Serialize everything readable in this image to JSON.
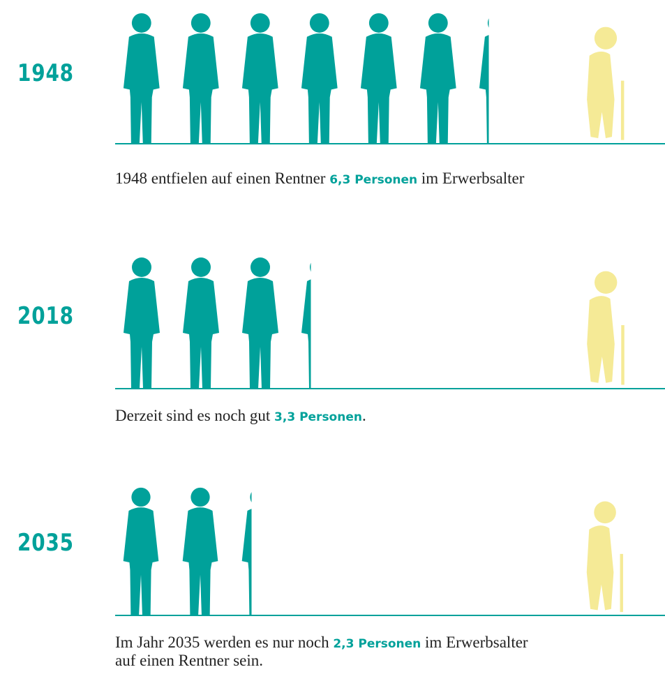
{
  "rows": [
    {
      "year": "1948",
      "text_before": "1948 entfielen auf einen Rentner ",
      "highlight": "6,3 Personen",
      "text_after": " im Erwerbsalter",
      "persons": 6.3
    },
    {
      "year": "2018",
      "text_before": "Derzeit sind es noch gut ",
      "highlight": "3,3 Personen",
      "text_after": ".",
      "persons": 3.3
    },
    {
      "year": "2035",
      "text_before": "Im Jahr 2035 werden es nur noch ",
      "highlight": "2,3 Personen",
      "text_after": " im Erwerbsalter",
      "text_line2": "auf einen Rentner sein.",
      "persons": 2.3
    }
  ]
}
